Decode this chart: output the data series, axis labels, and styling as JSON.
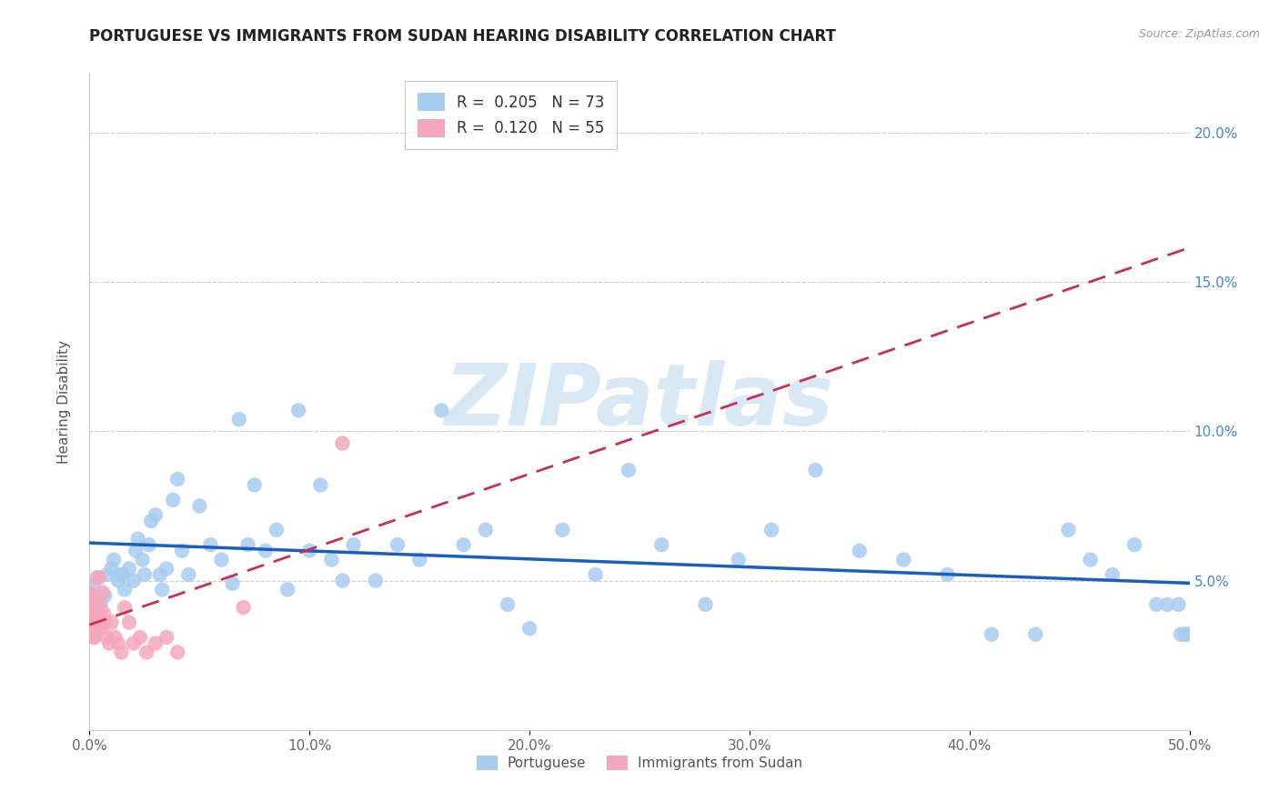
{
  "title": "PORTUGUESE VS IMMIGRANTS FROM SUDAN HEARING DISABILITY CORRELATION CHART",
  "source": "Source: ZipAtlas.com",
  "bottom_label1": "Portuguese",
  "bottom_label2": "Immigrants from Sudan",
  "ylabel": "Hearing Disability",
  "xlim": [
    0.0,
    0.5
  ],
  "ylim": [
    0.0,
    0.22
  ],
  "xtick_vals": [
    0.0,
    0.1,
    0.2,
    0.3,
    0.4,
    0.5
  ],
  "xtick_labels": [
    "0.0%",
    "10.0%",
    "20.0%",
    "30.0%",
    "40.0%",
    "50.0%"
  ],
  "ytick_vals": [
    0.05,
    0.1,
    0.15,
    0.2
  ],
  "ytick_labels": [
    "5.0%",
    "10.0%",
    "15.0%",
    "20.0%"
  ],
  "R_blue": 0.205,
  "N_blue": 73,
  "R_pink": 0.12,
  "N_pink": 55,
  "blue_dot_color": "#A8CCF0",
  "pink_dot_color": "#F5A8BB",
  "blue_line_color": "#1A5FBE",
  "pink_line_color": "#C83050",
  "legend_r_color": "#29ABE2",
  "legend_n_color": "#FF4400",
  "watermark_color": "#D8E8F5",
  "blue_x": [
    0.002,
    0.005,
    0.007,
    0.008,
    0.01,
    0.011,
    0.013,
    0.014,
    0.015,
    0.016,
    0.018,
    0.02,
    0.021,
    0.022,
    0.024,
    0.025,
    0.027,
    0.028,
    0.03,
    0.032,
    0.033,
    0.035,
    0.038,
    0.04,
    0.042,
    0.045,
    0.05,
    0.055,
    0.06,
    0.065,
    0.068,
    0.072,
    0.075,
    0.08,
    0.085,
    0.09,
    0.095,
    0.1,
    0.105,
    0.11,
    0.115,
    0.12,
    0.13,
    0.14,
    0.15,
    0.16,
    0.17,
    0.18,
    0.19,
    0.2,
    0.215,
    0.23,
    0.245,
    0.26,
    0.28,
    0.295,
    0.31,
    0.33,
    0.35,
    0.37,
    0.39,
    0.41,
    0.43,
    0.445,
    0.455,
    0.465,
    0.475,
    0.485,
    0.49,
    0.495,
    0.496,
    0.498,
    0.499
  ],
  "blue_y": [
    0.048,
    0.042,
    0.045,
    0.052,
    0.054,
    0.057,
    0.05,
    0.052,
    0.052,
    0.047,
    0.054,
    0.05,
    0.06,
    0.064,
    0.057,
    0.052,
    0.062,
    0.07,
    0.072,
    0.052,
    0.047,
    0.054,
    0.077,
    0.084,
    0.06,
    0.052,
    0.075,
    0.062,
    0.057,
    0.049,
    0.104,
    0.062,
    0.082,
    0.06,
    0.067,
    0.047,
    0.107,
    0.06,
    0.082,
    0.057,
    0.05,
    0.062,
    0.05,
    0.062,
    0.057,
    0.107,
    0.062,
    0.067,
    0.042,
    0.034,
    0.067,
    0.052,
    0.087,
    0.062,
    0.042,
    0.057,
    0.067,
    0.087,
    0.06,
    0.057,
    0.052,
    0.032,
    0.032,
    0.067,
    0.057,
    0.052,
    0.062,
    0.042,
    0.042,
    0.042,
    0.032,
    0.032,
    0.032
  ],
  "pink_x": [
    0.0001,
    0.0002,
    0.0003,
    0.0004,
    0.0005,
    0.0006,
    0.0007,
    0.0007,
    0.0008,
    0.0009,
    0.001,
    0.001,
    0.0011,
    0.0012,
    0.0013,
    0.0014,
    0.0015,
    0.0016,
    0.0017,
    0.0018,
    0.0019,
    0.002,
    0.0021,
    0.0022,
    0.0023,
    0.0025,
    0.0027,
    0.003,
    0.0033,
    0.0036,
    0.0038,
    0.004,
    0.0043,
    0.0047,
    0.005,
    0.0055,
    0.006,
    0.0065,
    0.007,
    0.008,
    0.009,
    0.01,
    0.0115,
    0.013,
    0.0145,
    0.016,
    0.018,
    0.02,
    0.023,
    0.026,
    0.03,
    0.035,
    0.04,
    0.07,
    0.115
  ],
  "pink_y": [
    0.044,
    0.041,
    0.039,
    0.046,
    0.043,
    0.039,
    0.036,
    0.041,
    0.039,
    0.036,
    0.033,
    0.041,
    0.038,
    0.034,
    0.036,
    0.034,
    0.031,
    0.039,
    0.036,
    0.039,
    0.033,
    0.041,
    0.036,
    0.031,
    0.036,
    0.033,
    0.039,
    0.036,
    0.051,
    0.043,
    0.041,
    0.039,
    0.051,
    0.041,
    0.036,
    0.034,
    0.046,
    0.039,
    0.036,
    0.031,
    0.029,
    0.036,
    0.031,
    0.029,
    0.026,
    0.041,
    0.036,
    0.029,
    0.031,
    0.026,
    0.029,
    0.031,
    0.026,
    0.041,
    0.096
  ]
}
